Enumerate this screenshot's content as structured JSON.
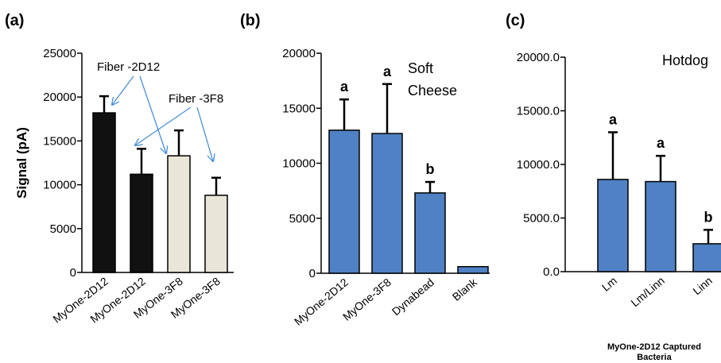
{
  "colors": {
    "black_bar": "#111111",
    "beige_bar": "#e9e6d8",
    "blue_bar": "#4f81c4",
    "arrow": "#4a90d9"
  },
  "chart_data": [
    {
      "id": "a",
      "type": "bar",
      "panel_label": "(a)",
      "title": "",
      "ylabel": "Signal (pA)",
      "xlabel": "",
      "ylim": [
        0,
        25000
      ],
      "yticks": [
        "0",
        "5000",
        "10000",
        "15000",
        "20000",
        "25000"
      ],
      "categories": [
        "MyOne-2D12",
        "MyOne-2D12",
        "MyOne-3F8",
        "MyOne-3F8"
      ],
      "values": [
        18200,
        11200,
        13300,
        8800
      ],
      "errors": [
        1900,
        2900,
        2900,
        2000
      ],
      "bar_colors": [
        "black",
        "black",
        "beige",
        "beige"
      ],
      "annotations": [
        {
          "text": "Fiber -2D12",
          "targets": [
            0,
            2
          ]
        },
        {
          "text": "Fiber -3F8",
          "targets": [
            1,
            3
          ]
        }
      ]
    },
    {
      "id": "b",
      "type": "bar",
      "panel_label": "(b)",
      "title_lines": [
        "Soft",
        "Cheese"
      ],
      "ylabel": "",
      "xlabel": "",
      "ylim": [
        0,
        20000
      ],
      "yticks": [
        "0",
        "5000",
        "10000",
        "15000",
        "20000"
      ],
      "categories": [
        "MyOne-2D12",
        "MyOne-3F8",
        "Dynabead",
        "Blank"
      ],
      "values": [
        13000,
        12700,
        7300,
        600
      ],
      "errors": [
        2800,
        4500,
        1000,
        0
      ],
      "significance": [
        "a",
        "a",
        "b",
        ""
      ]
    },
    {
      "id": "c",
      "type": "bar",
      "panel_label": "(c)",
      "title_lines": [
        "Hotdog"
      ],
      "ylabel": "",
      "xlabel_lines": [
        "MyOne-2D12 Captured",
        "Bacteria"
      ],
      "ylim": [
        0,
        20000
      ],
      "yticks": [
        "0.0",
        "5000.0",
        "10000.0",
        "15000.0",
        "20000.0"
      ],
      "categories": [
        "Lm",
        "Lm/Linn",
        "Linn"
      ],
      "values": [
        8600,
        8400,
        2600
      ],
      "errors": [
        4400,
        2400,
        1300
      ],
      "significance": [
        "a",
        "a",
        "b"
      ]
    }
  ]
}
